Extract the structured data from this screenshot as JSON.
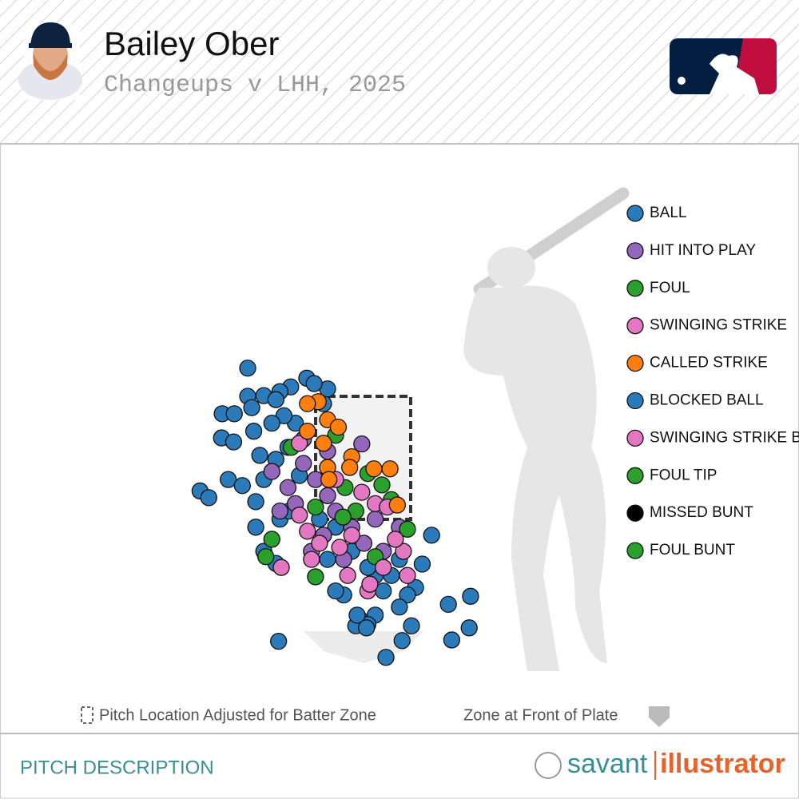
{
  "chart_data": {
    "type": "scatter",
    "title": "Bailey Ober",
    "subtitle": "Changeups v LHH, 2025",
    "notes": [
      "Pitch Location Adjusted for Batter Zone",
      "Zone at Front of Plate"
    ],
    "footer_label": "PITCH DESCRIPTION",
    "brand": [
      "savant",
      "illustrator"
    ],
    "xlim": [
      -4.2,
      4.2
    ],
    "ylim": [
      -0.5,
      5.5
    ],
    "series": [
      {
        "name": "BALL",
        "color": "#2b7bba",
        "x": [
          -1.72,
          -0.84,
          -1.08,
          -1.24,
          -1.48,
          -1.72,
          -2.1,
          -1.92,
          -1.66,
          -1.3,
          -1.63,
          -2.11,
          -1.93,
          -2.43,
          -2.3,
          -2.01,
          -1.8,
          -1.6,
          -1.48,
          -1.3,
          -1.54,
          -1.12,
          -1.01,
          -1.18,
          -1.36,
          -1.6,
          -1.24,
          -1.3,
          -1.48,
          1.02,
          0.88,
          0.78,
          0.66,
          0.54,
          0.18,
          -0.05,
          -0.11,
          0.07,
          0.58,
          0.72,
          0.34,
          -1.26,
          1.32,
          1.58,
          1.27,
          1.6,
          -0.29,
          -0.41,
          0.18,
          0.42,
          -0.53,
          -0.17,
          0.07,
          -0.59,
          -0.53,
          -0.73,
          -0.95,
          -1.1,
          -0.65,
          -0.41,
          0.54,
          0.3
        ],
        "values": [
          3.82,
          3.67,
          3.54,
          3.47,
          3.41,
          3.4,
          3.14,
          3.14,
          3.23,
          3.35,
          2.88,
          2.78,
          2.72,
          1.99,
          1.89,
          2.16,
          2.07,
          1.83,
          2.16,
          2.46,
          2.52,
          2.64,
          3.0,
          3.11,
          3.0,
          1.45,
          1.57,
          0.91,
          1.09,
          1.33,
          0.9,
          0.55,
          0.44,
          0.26,
          0.14,
          0.08,
          -0.02,
          0.0,
          -0.24,
          -0.02,
          -0.49,
          -0.25,
          -0.23,
          -0.05,
          0.3,
          0.42,
          0.44,
          0.5,
          0.73,
          0.73,
          0.97,
          1.09,
          0.85,
          3.29,
          3.51,
          3.59,
          2.22,
          1.69,
          1.57,
          1.45,
          0.97,
          0.5
        ]
      },
      {
        "name": "HIT INTO PLAY",
        "color": "#9467bd",
        "x": [
          -0.02,
          -0.53,
          -0.89,
          -0.71,
          -1.12,
          -1.36,
          -1.01,
          -0.41,
          -0.17,
          -0.59,
          -0.77,
          -0.29,
          0.01,
          0.3,
          -0.53,
          -1.24,
          -0.89,
          0.54,
          0.18
        ],
        "values": [
          2.69,
          2.58,
          2.4,
          2.16,
          2.04,
          2.28,
          1.8,
          1.69,
          1.45,
          1.33,
          1.09,
          0.97,
          1.21,
          1.09,
          1.92,
          1.69,
          2.76,
          1.45,
          1.57
        ]
      },
      {
        "name": "FOUL",
        "color": "#2ca02c",
        "x": [
          -0.41,
          -0.53,
          -0.27,
          0.28,
          0.07,
          -1.36,
          -1.45,
          -0.71,
          0.66,
          0.18,
          -0.11,
          -0.71,
          -1.07,
          0.42
        ],
        "values": [
          2.82,
          2.34,
          2.04,
          2.08,
          2.25,
          1.27,
          1.01,
          0.71,
          1.42,
          1.01,
          1.69,
          1.75,
          2.64,
          1.86
        ]
      },
      {
        "name": "SWINGING STRIKE",
        "color": "#e377c2",
        "x": [
          -0.02,
          0.18,
          0.36,
          -0.95,
          -0.83,
          -0.65,
          -0.35,
          -0.23,
          0.07,
          0.3,
          0.6,
          0.66,
          -1.22,
          -0.77,
          -0.41,
          -0.95,
          -0.17,
          0.48
        ],
        "values": [
          1.97,
          1.8,
          1.75,
          1.63,
          1.39,
          1.21,
          1.15,
          0.73,
          0.5,
          0.85,
          1.09,
          0.73,
          0.85,
          0.97,
          2.16,
          2.7,
          1.33,
          1.27
        ]
      },
      {
        "name": "CALLED STRIKE",
        "color": "#ff7f0e",
        "x": [
          -0.67,
          -0.83,
          -0.53,
          -0.37,
          -0.83,
          -0.17,
          -0.2,
          -0.53,
          0.16,
          0.4,
          0.51,
          -0.51,
          -0.59
        ],
        "values": [
          3.32,
          3.29,
          3.05,
          2.94,
          2.88,
          2.5,
          2.34,
          2.34,
          2.32,
          2.32,
          1.78,
          2.16,
          2.7
        ]
      },
      {
        "name": "BLOCKED BALL",
        "color": "#2b7bba",
        "x": [
          -0.09,
          0.05
        ],
        "values": [
          0.14,
          -0.05
        ]
      },
      {
        "name": "SWINGING STRIKE BLOCKED",
        "color": "#e377c2",
        "x": [
          0.1
        ],
        "values": [
          0.6
        ]
      },
      {
        "name": "FOUL TIP",
        "color": "#2ca02c",
        "x": [
          -0.3
        ],
        "values": [
          1.6
        ]
      },
      {
        "name": "MISSED BUNT",
        "color": "#000000",
        "x": [],
        "values": []
      },
      {
        "name": "FOUL BUNT",
        "color": "#2ca02c",
        "x": [],
        "values": []
      }
    ]
  }
}
